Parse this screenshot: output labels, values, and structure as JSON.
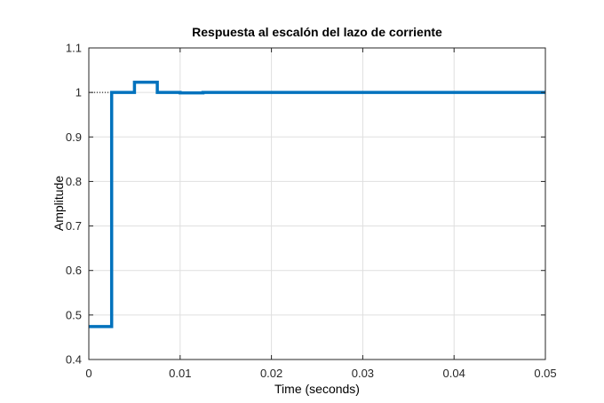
{
  "chart_data": {
    "type": "line",
    "title": "Respuesta al escalón del lazo de corriente",
    "xlabel": "Time (seconds)",
    "ylabel": "Amplitude",
    "xlim": [
      0,
      0.05
    ],
    "ylim": [
      0.4,
      1.1
    ],
    "x_ticks": [
      "0",
      "0.01",
      "0.02",
      "0.03",
      "0.04",
      "0.05"
    ],
    "y_ticks": [
      "0.4",
      "0.5",
      "0.6",
      "0.7",
      "0.8",
      "0.9",
      "1",
      "1.1"
    ],
    "grid": true,
    "steady_state_reference": 1,
    "steady_state_reference_until": 0.0025,
    "series": [
      {
        "name": "",
        "color": "#0072BD",
        "step": true,
        "x": [
          0,
          0.0025,
          0.005,
          0.0075,
          0.01,
          0.0125,
          0.05
        ],
        "y": [
          0.474,
          1.0,
          1.023,
          1.0,
          0.999,
          1.0,
          1.0
        ]
      }
    ]
  }
}
